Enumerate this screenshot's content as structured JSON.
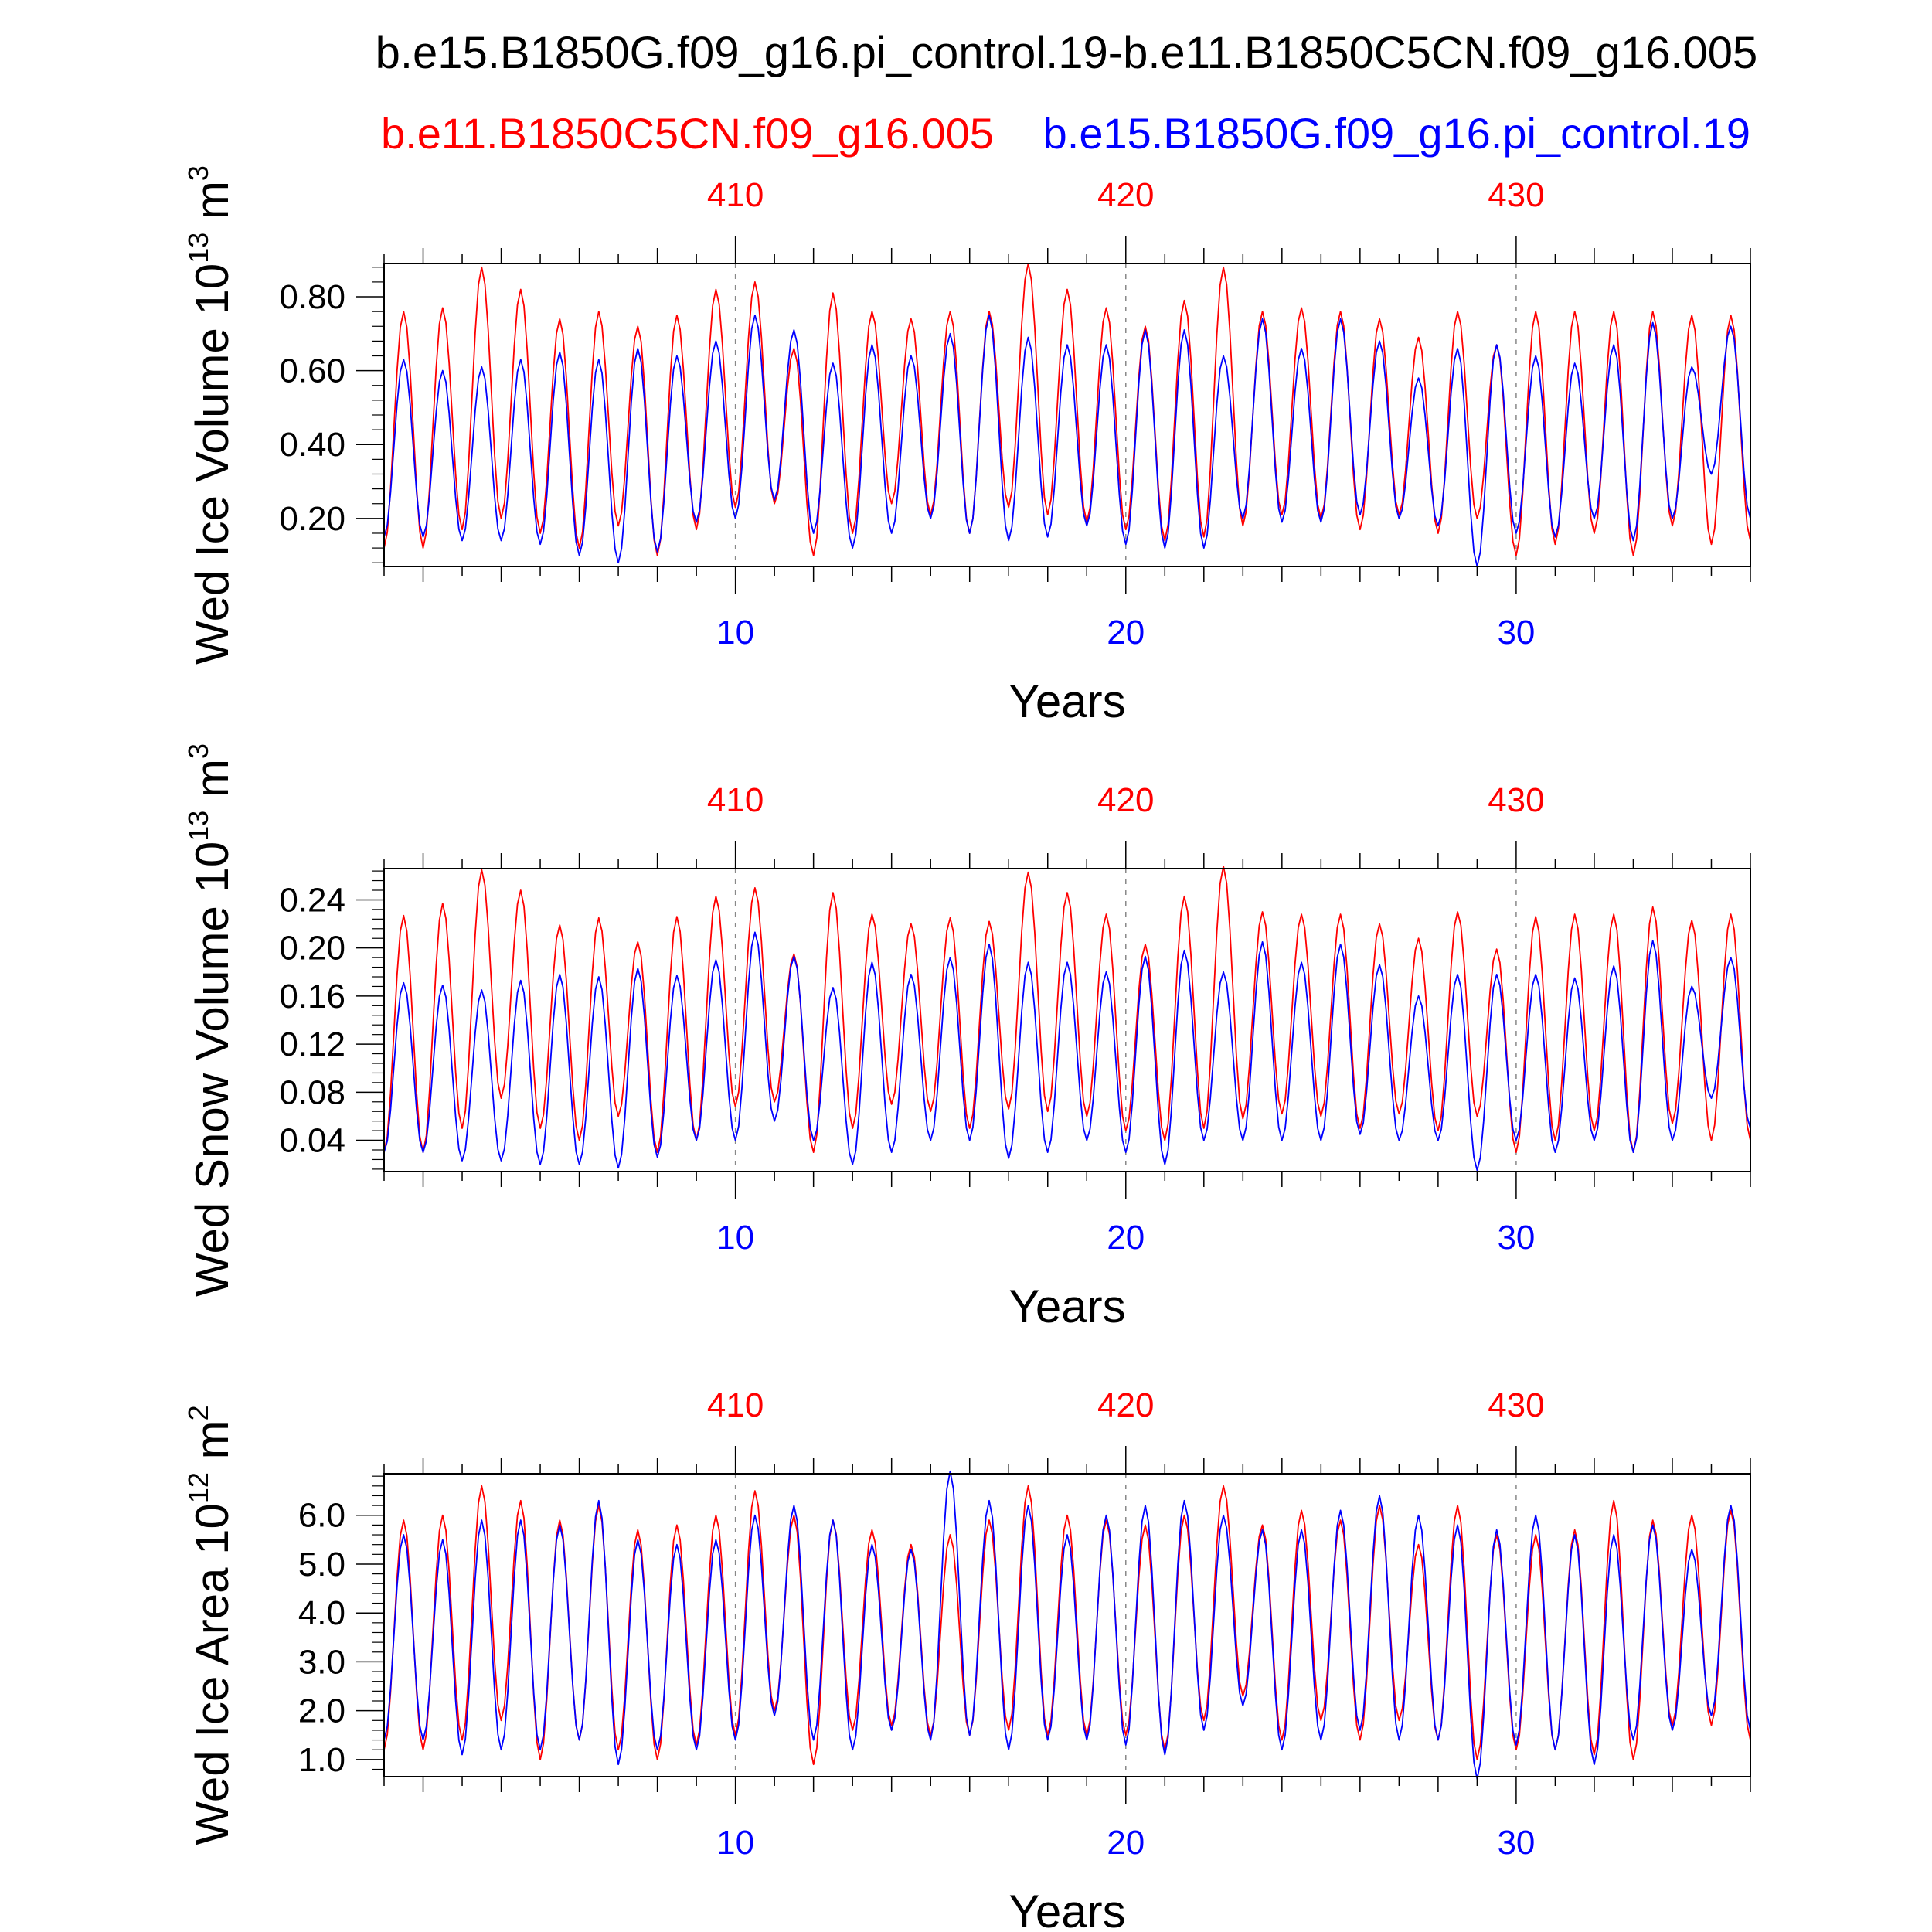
{
  "figure_title": "b.e15.B1850G.f09_g16.pi_control.19-b.e11.B1850C5CN.f09_g16.005",
  "legend": {
    "red_label": "b.e11.B1850C5CN.f09_g16.005",
    "blue_label": "b.e15.B1850G.f09_g16.pi_control.19"
  },
  "colors": {
    "red": "#ff0000",
    "blue": "#0000ff",
    "text": "#000000",
    "grid": "#888888"
  },
  "chart_data": [
    {
      "type": "line",
      "title": "",
      "ylabel_main": "Wed Ice Volume 10",
      "ylabel_exp": "13",
      "ylabel_unit": " m",
      "ylabel_unit_exp": "3",
      "xlabel": "Years",
      "ylim": [
        0.07,
        0.89
      ],
      "yticks": [
        0.2,
        0.4,
        0.6,
        0.8
      ],
      "ytick_labels": [
        "0.20",
        "0.40",
        "0.60",
        "0.80"
      ],
      "x_range": [
        1,
        36
      ],
      "bottom_ticks": [
        10,
        20,
        30
      ],
      "bottom_tick_labels": [
        "10",
        "20",
        "30"
      ],
      "top_ticks": [
        10,
        20,
        30
      ],
      "top_tick_labels": [
        "410",
        "420",
        "430"
      ],
      "series": [
        {
          "name": "b.e11.B1850C5CN.f09_g16.005",
          "color": "red",
          "peaks": [
            0.76,
            0.77,
            0.88,
            0.82,
            0.74,
            0.76,
            0.72,
            0.75,
            0.82,
            0.84,
            0.66,
            0.81,
            0.76,
            0.74,
            0.76,
            0.76,
            0.89,
            0.82,
            0.77,
            0.72,
            0.79,
            0.88,
            0.76,
            0.77,
            0.76,
            0.74,
            0.69,
            0.76,
            0.67,
            0.76,
            0.76,
            0.76,
            0.76,
            0.75,
            0.75,
            0.78
          ],
          "troughs": [
            0.12,
            0.17,
            0.2,
            0.16,
            0.12,
            0.18,
            0.1,
            0.17,
            0.23,
            0.24,
            0.1,
            0.16,
            0.24,
            0.21,
            0.16,
            0.23,
            0.21,
            0.19,
            0.17,
            0.14,
            0.15,
            0.18,
            0.21,
            0.2,
            0.17,
            0.21,
            0.16,
            0.2,
            0.1,
            0.13,
            0.16,
            0.1,
            0.18,
            0.13,
            0.14,
            0.2
          ]
        },
        {
          "name": "b.e15.B1850G.f09_g16.pi_control.19",
          "color": "blue",
          "peaks": [
            0.63,
            0.6,
            0.61,
            0.63,
            0.65,
            0.63,
            0.66,
            0.64,
            0.68,
            0.75,
            0.71,
            0.62,
            0.67,
            0.64,
            0.7,
            0.75,
            0.69,
            0.67,
            0.67,
            0.71,
            0.71,
            0.64,
            0.74,
            0.66,
            0.74,
            0.68,
            0.58,
            0.66,
            0.67,
            0.64,
            0.62,
            0.67,
            0.73,
            0.61,
            0.72,
            0.72
          ],
          "troughs": [
            0.15,
            0.14,
            0.14,
            0.13,
            0.1,
            0.08,
            0.11,
            0.19,
            0.2,
            0.25,
            0.16,
            0.12,
            0.16,
            0.2,
            0.16,
            0.14,
            0.15,
            0.18,
            0.13,
            0.12,
            0.12,
            0.2,
            0.19,
            0.19,
            0.21,
            0.2,
            0.18,
            0.07,
            0.16,
            0.15,
            0.2,
            0.14,
            0.2,
            0.32,
            0.2,
            0.2
          ]
        }
      ]
    },
    {
      "type": "line",
      "title": "",
      "ylabel_main": "Wed Snow Volume 10",
      "ylabel_exp": "13",
      "ylabel_unit": " m",
      "ylabel_unit_exp": "3",
      "xlabel": "Years",
      "ylim": [
        0.014,
        0.266
      ],
      "yticks": [
        0.04,
        0.08,
        0.12,
        0.16,
        0.2,
        0.24
      ],
      "ytick_labels": [
        "0.04",
        "0.08",
        "0.12",
        "0.16",
        "0.20",
        "0.24"
      ],
      "x_range": [
        1,
        36
      ],
      "bottom_ticks": [
        10,
        20,
        30
      ],
      "bottom_tick_labels": [
        "10",
        "20",
        "30"
      ],
      "top_ticks": [
        10,
        20,
        30
      ],
      "top_tick_labels": [
        "410",
        "420",
        "430"
      ],
      "series": [
        {
          "name": "b.e11.B1850C5CN.f09_g16.005",
          "color": "red",
          "peaks": [
            0.227,
            0.237,
            0.265,
            0.248,
            0.219,
            0.225,
            0.205,
            0.226,
            0.243,
            0.25,
            0.195,
            0.246,
            0.228,
            0.22,
            0.225,
            0.222,
            0.263,
            0.246,
            0.228,
            0.203,
            0.243,
            0.268,
            0.23,
            0.228,
            0.228,
            0.22,
            0.208,
            0.23,
            0.199,
            0.226,
            0.228,
            0.228,
            0.234,
            0.223,
            0.228,
            0.234
          ],
          "troughs": [
            0.03,
            0.05,
            0.075,
            0.05,
            0.04,
            0.06,
            0.03,
            0.04,
            0.068,
            0.072,
            0.03,
            0.05,
            0.07,
            0.064,
            0.05,
            0.066,
            0.064,
            0.06,
            0.048,
            0.04,
            0.05,
            0.058,
            0.062,
            0.06,
            0.05,
            0.062,
            0.048,
            0.06,
            0.03,
            0.04,
            0.048,
            0.03,
            0.054,
            0.04,
            0.04,
            0.06
          ]
        },
        {
          "name": "b.e15.B1850G.f09_g16.pi_control.19",
          "color": "blue",
          "peaks": [
            0.171,
            0.169,
            0.165,
            0.173,
            0.178,
            0.176,
            0.183,
            0.177,
            0.19,
            0.213,
            0.193,
            0.167,
            0.188,
            0.178,
            0.192,
            0.203,
            0.188,
            0.188,
            0.18,
            0.193,
            0.198,
            0.18,
            0.205,
            0.188,
            0.203,
            0.186,
            0.16,
            0.178,
            0.178,
            0.178,
            0.175,
            0.185,
            0.206,
            0.168,
            0.192,
            0.19
          ],
          "troughs": [
            0.03,
            0.023,
            0.023,
            0.02,
            0.02,
            0.017,
            0.026,
            0.04,
            0.04,
            0.056,
            0.04,
            0.02,
            0.03,
            0.04,
            0.04,
            0.025,
            0.03,
            0.04,
            0.03,
            0.02,
            0.04,
            0.04,
            0.04,
            0.04,
            0.045,
            0.04,
            0.04,
            0.015,
            0.04,
            0.03,
            0.04,
            0.03,
            0.04,
            0.075,
            0.05,
            0.035
          ]
        }
      ]
    },
    {
      "type": "line",
      "title": "",
      "ylabel_main": "Wed Ice Area 10",
      "ylabel_exp": "12",
      "ylabel_unit": " m",
      "ylabel_unit_exp": "2",
      "xlabel": "Years",
      "ylim": [
        0.65,
        6.85
      ],
      "yticks": [
        1,
        2,
        3,
        4,
        5,
        6
      ],
      "ytick_labels": [
        "1.0",
        "2.0",
        "3.0",
        "4.0",
        "5.0",
        "6.0"
      ],
      "x_range": [
        1,
        36
      ],
      "bottom_ticks": [
        10,
        20,
        30
      ],
      "bottom_tick_labels": [
        "10",
        "20",
        "30"
      ],
      "top_ticks": [
        10,
        20,
        30
      ],
      "top_tick_labels": [
        "410",
        "420",
        "430"
      ],
      "series": [
        {
          "name": "b.e11.B1850C5CN.f09_g16.005",
          "color": "red",
          "peaks": [
            5.9,
            6.0,
            6.6,
            6.3,
            5.9,
            6.2,
            5.7,
            5.8,
            6.0,
            6.5,
            6.0,
            5.9,
            5.7,
            5.4,
            5.6,
            5.9,
            6.6,
            6.0,
            5.9,
            5.8,
            6.0,
            6.6,
            5.8,
            6.1,
            5.9,
            6.2,
            5.4,
            6.2,
            5.6,
            5.6,
            5.7,
            6.3,
            5.9,
            6.0,
            6.1,
            5.6
          ],
          "troughs": [
            1.2,
            1.4,
            1.8,
            1.0,
            1.4,
            1.2,
            1.0,
            1.3,
            1.5,
            2.0,
            0.9,
            1.6,
            1.7,
            1.5,
            1.5,
            1.6,
            1.5,
            1.5,
            1.5,
            1.2,
            1.8,
            2.3,
            1.4,
            1.8,
            1.4,
            1.8,
            1.4,
            1.0,
            1.2,
            1.2,
            1.1,
            1.0,
            1.7,
            1.7,
            1.4,
            1.5
          ]
        },
        {
          "name": "b.e15.B1850G.f09_g16.pi_control.19",
          "color": "blue",
          "peaks": [
            5.6,
            5.5,
            5.9,
            5.9,
            5.8,
            6.3,
            5.5,
            5.4,
            5.5,
            6.0,
            6.2,
            5.9,
            5.4,
            5.3,
            6.9,
            6.3,
            6.2,
            5.6,
            6.0,
            6.2,
            6.3,
            6.0,
            5.7,
            5.7,
            6.1,
            6.4,
            6.0,
            5.8,
            5.7,
            6.0,
            5.6,
            5.6,
            5.8,
            5.3,
            6.2,
            6.2
          ],
          "troughs": [
            1.4,
            1.1,
            1.2,
            1.2,
            1.4,
            0.9,
            1.2,
            1.2,
            1.4,
            1.9,
            1.4,
            1.2,
            1.6,
            1.4,
            1.5,
            1.2,
            1.4,
            1.4,
            1.3,
            1.1,
            1.6,
            2.1,
            1.2,
            1.4,
            1.6,
            1.4,
            1.4,
            0.6,
            1.3,
            1.2,
            0.9,
            1.4,
            1.6,
            1.9,
            1.6,
            1.6
          ]
        }
      ]
    }
  ]
}
